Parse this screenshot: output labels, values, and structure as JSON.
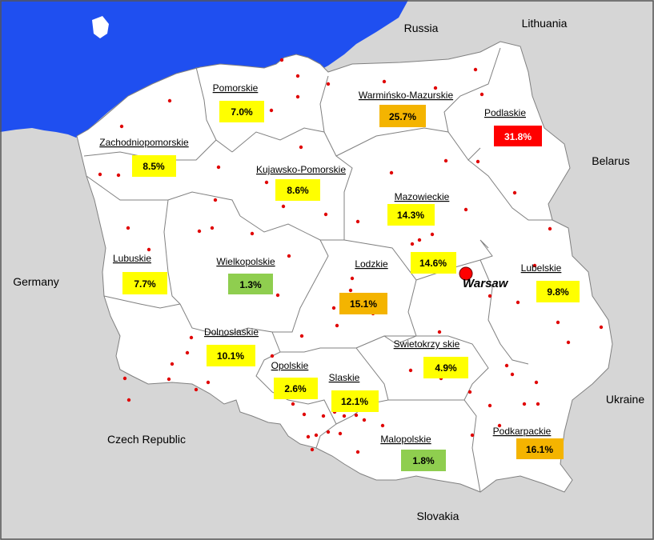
{
  "map": {
    "countries": [
      {
        "id": "russia",
        "name": "Russia"
      },
      {
        "id": "lithuania",
        "name": "Lithuania"
      },
      {
        "id": "belarus",
        "name": "Belarus"
      },
      {
        "id": "germany",
        "name": "Germany"
      },
      {
        "id": "ukraine",
        "name": "Ukraine"
      },
      {
        "id": "czech",
        "name": "Czech Republic"
      },
      {
        "id": "slovakia",
        "name": "Slovakia"
      }
    ],
    "capital": {
      "name": "Warsaw"
    },
    "regions": [
      {
        "id": "pomorskie",
        "name": "Pomorskie",
        "value": "7.0%",
        "class": "yellow"
      },
      {
        "id": "warminsko",
        "name": "Warmińsko-Mazurskie",
        "value": "25.7%",
        "class": "orange"
      },
      {
        "id": "podlaskie",
        "name": "Podlaskie",
        "value": "31.8%",
        "class": "red"
      },
      {
        "id": "zachodniopomorskie",
        "name": "Zachodniopomorskie",
        "value": "8.5%",
        "class": "yellow"
      },
      {
        "id": "kujawsko",
        "name": "Kujawsko-Pomorskie",
        "value": "8.6%",
        "class": "yellow"
      },
      {
        "id": "mazowieckie",
        "name": "Mazowieckie",
        "value": "14.3%",
        "class": "yellow"
      },
      {
        "id": "warsaw",
        "name": "",
        "value": "14.6%",
        "class": "yellow"
      },
      {
        "id": "lubuskie",
        "name": "Lubuskie",
        "value": "7.7%",
        "class": "yellow"
      },
      {
        "id": "wielkopolskie",
        "name": "Wielkopolskie",
        "value": "1.3%",
        "class": "green"
      },
      {
        "id": "lodzkie",
        "name": "Lodzkie",
        "value": "15.1%",
        "class": "orange"
      },
      {
        "id": "lubelskie",
        "name": "Lubelskie",
        "value": "9.8%",
        "class": "yellow"
      },
      {
        "id": "dolnoslaskie",
        "name": "Dolnoslaskie",
        "value": "10.1%",
        "class": "yellow"
      },
      {
        "id": "swietokrzyskie",
        "name": "Swietokrzy skie",
        "value": "4.9%",
        "class": "yellow"
      },
      {
        "id": "opolskie",
        "name": "Opolskie",
        "value": "2.6%",
        "class": "yellow"
      },
      {
        "id": "slaskie",
        "name": "Slaskie",
        "value": "12.1%",
        "class": "yellow"
      },
      {
        "id": "malopolskie",
        "name": "Malopolskie",
        "value": "1.8%",
        "class": "green"
      },
      {
        "id": "podkarpackie",
        "name": "Podkarpackie",
        "value": "16.1%",
        "class": "orange"
      }
    ]
  },
  "colors": {
    "yellow": "#ffff00",
    "orange": "#f4b400",
    "red": "#ff0000",
    "green": "#8fce4f",
    "sea": "#1f4ff0",
    "neighbor": "#d6d6d6",
    "land": "#ffffff",
    "border": "#808080",
    "dot": "#e00000",
    "capital_marker": "#ff0000"
  }
}
